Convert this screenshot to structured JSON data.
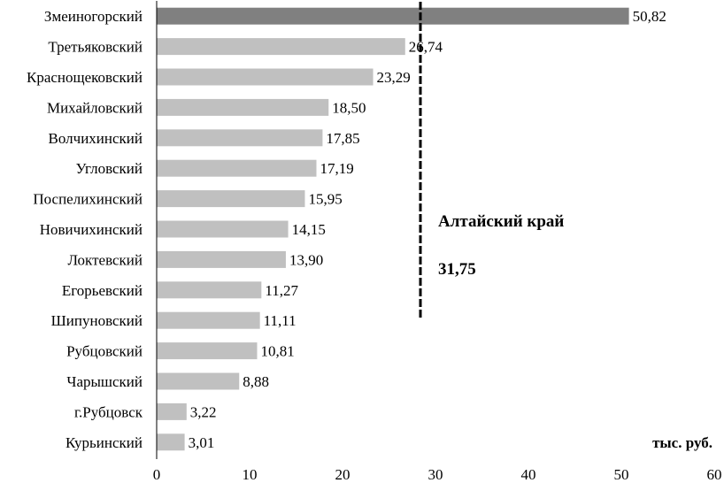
{
  "chart_data": {
    "type": "bar",
    "orientation": "horizontal",
    "categories": [
      "Змеиногорский",
      "Третьяковский",
      "Краснощековский",
      "Михайловский",
      "Волчихинский",
      "Угловский",
      "Поспелихинский",
      "Новичихинский",
      "Локтевский",
      "Егорьевский",
      "Шипуновский",
      "Рубцовский",
      "Чарышский",
      "г.Рубцовск",
      "Курьинский"
    ],
    "values": [
      50.82,
      26.74,
      23.29,
      18.5,
      17.85,
      17.19,
      15.95,
      14.15,
      13.9,
      11.27,
      11.11,
      10.81,
      8.88,
      3.22,
      3.01
    ],
    "data_labels": [
      "50,82",
      "26,74",
      "23,29",
      "18,50",
      "17,85",
      "17,19",
      "15,95",
      "14,15",
      "13,90",
      "11,27",
      "11,11",
      "10,81",
      "8,88",
      "3,22",
      "3,01"
    ],
    "xlim": [
      0,
      60
    ],
    "xticks": [
      0,
      10,
      20,
      30,
      40,
      50,
      60
    ],
    "unit_label": "тыс. руб.",
    "reference_line": {
      "value": 31.75,
      "label": "Алтайский край",
      "value_label": "31,75"
    },
    "colors": {
      "highlight": "#808080",
      "bar": "#c0c0c0",
      "axis": "#000000"
    },
    "grid": false
  }
}
